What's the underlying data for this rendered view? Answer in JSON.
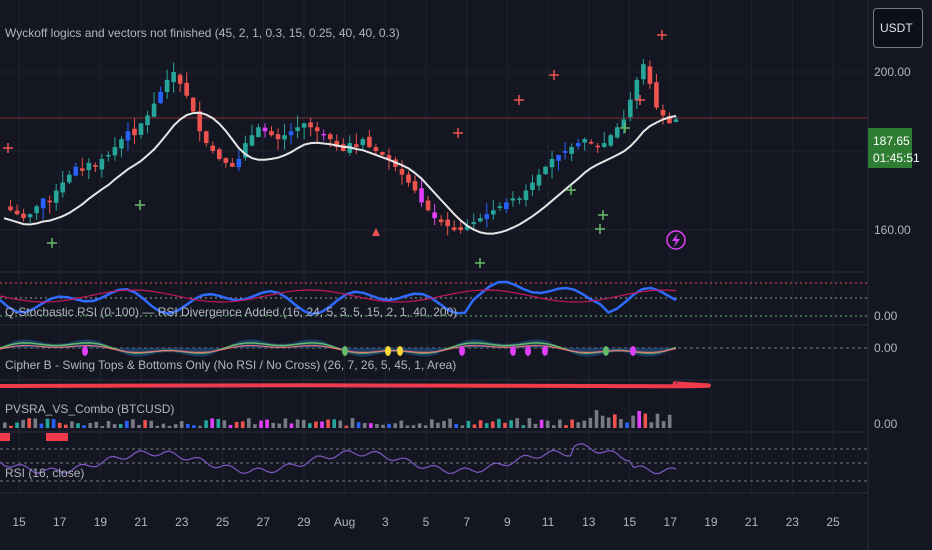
{
  "currency": "USDT",
  "price_badge": {
    "price": "187.65",
    "countdown": "01:45:51"
  },
  "price_axis": {
    "ticks": [
      "200.00",
      "160.00"
    ]
  },
  "panes": {
    "main": {
      "label": "Wyckoff logics and vectors not finished (45, 2, 1, 0.3, 15, 0.25, 40, 40, 0.3)"
    },
    "stoch": {
      "label": "Q-Stochastic RSI (0-100) — RSI Divergence Added (16, 24, 5, 3, 5, 15, 2, 1, 40, 200)",
      "axis": "0.00"
    },
    "cipher": {
      "label": "Cipher B - Swing Tops & Bottoms Only (No RSI / No Cross) (26, 7, 26, 5, 45, 1, Area)",
      "axis": "0.00"
    },
    "pvsra": {
      "label": "PVSRA_VS_Combo (BTCUSD)",
      "axis": "0.00"
    },
    "rsi": {
      "label": "RSI (16, close)"
    }
  },
  "date_axis": [
    "15",
    "17",
    "19",
    "21",
    "23",
    "25",
    "27",
    "29",
    "Aug",
    "3",
    "5",
    "7",
    "9",
    "11",
    "13",
    "15",
    "17",
    "19",
    "21",
    "23",
    "25"
  ],
  "colors": {
    "bull": "#26a69a",
    "bear": "#ef5350",
    "bull_vector": "#2962ff",
    "bear_vector": "#e040fb",
    "ma": "#e6e6e6",
    "stoch": "#2f6bff",
    "rsi": "#7e57c2"
  },
  "chart_data": {
    "type": "candlestick",
    "y_ticks": [
      160,
      200
    ],
    "current_price": 187.65,
    "close_series": [
      166,
      165,
      164,
      163,
      164,
      166,
      168,
      167,
      170,
      172,
      174,
      176,
      175,
      177,
      176,
      178,
      179,
      181,
      183,
      185,
      184,
      187,
      189,
      192,
      195,
      198,
      200,
      197,
      194,
      190,
      185,
      182,
      180,
      178,
      177,
      176,
      178,
      182,
      184,
      186,
      185,
      184,
      183,
      184,
      185,
      186,
      187,
      186,
      185,
      184,
      183,
      181,
      180,
      182,
      181,
      183,
      181,
      180,
      179,
      178,
      176,
      174,
      172,
      170,
      167,
      165,
      163,
      162,
      161,
      160,
      160,
      161,
      162,
      163,
      164,
      165,
      166,
      167,
      168,
      168,
      170,
      172,
      174,
      176,
      178,
      179,
      180,
      181,
      182,
      183,
      182,
      181,
      182,
      184,
      186,
      188,
      193,
      198,
      202,
      197,
      191,
      189,
      187,
      188
    ]
  }
}
